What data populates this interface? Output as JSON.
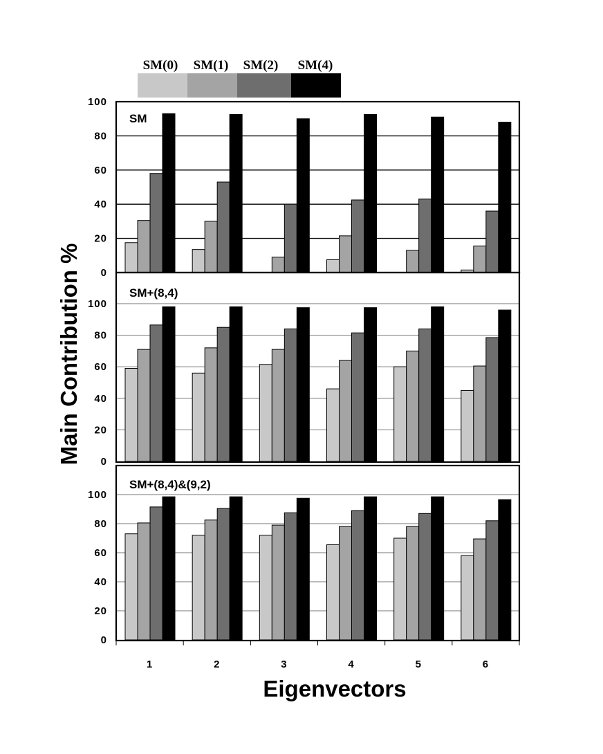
{
  "chart_data": {
    "type": "bar",
    "xlabel": "Eigenvectors",
    "ylabel": "Main Contribution %",
    "categories": [
      "1",
      "2",
      "3",
      "4",
      "5",
      "6"
    ],
    "ylim": [
      0,
      100
    ],
    "yticks": [
      "0",
      "20",
      "40",
      "60",
      "80",
      "100"
    ],
    "legend": {
      "position": "top",
      "entries": [
        {
          "name": "SM(0)",
          "color": "#c8c8c8"
        },
        {
          "name": "SM(1)",
          "color": "#a4a4a4"
        },
        {
          "name": "SM(2)",
          "color": "#6e6e6e"
        },
        {
          "name": "SM(4)",
          "color": "#000000"
        }
      ]
    },
    "panels": [
      {
        "label": "SM",
        "grid": true,
        "series": [
          {
            "name": "SM(0)",
            "values": [
              17.5,
              13.5,
              0,
              7.5,
              0,
              1.5
            ]
          },
          {
            "name": "SM(1)",
            "values": [
              30.5,
              30,
              9,
              21.5,
              13,
              15.5
            ]
          },
          {
            "name": "SM(2)",
            "values": [
              58,
              53,
              40,
              42.5,
              43,
              36
            ]
          },
          {
            "name": "SM(4)",
            "values": [
              93,
              92.5,
              90,
              92.5,
              91,
              88
            ]
          }
        ]
      },
      {
        "label": "SM+(8,4)",
        "grid": true,
        "series": [
          {
            "name": "SM(0)",
            "values": [
              59,
              56,
              61.5,
              46,
              60,
              45
            ]
          },
          {
            "name": "SM(1)",
            "values": [
              71,
              72,
              71,
              64,
              70,
              60.5
            ]
          },
          {
            "name": "SM(2)",
            "values": [
              86.5,
              85,
              84,
              81.5,
              84,
              78.5
            ]
          },
          {
            "name": "SM(4)",
            "values": [
              98,
              98,
              97.5,
              97.5,
              98,
              96
            ]
          }
        ]
      },
      {
        "label": "SM+(8,4)&(9,2)",
        "grid": true,
        "series": [
          {
            "name": "SM(0)",
            "values": [
              73,
              72,
              72,
              65.5,
              70,
              58
            ]
          },
          {
            "name": "SM(1)",
            "values": [
              80.5,
              82.5,
              79,
              78,
              78,
              69.5
            ]
          },
          {
            "name": "SM(2)",
            "values": [
              91.5,
              90.5,
              87.5,
              89,
              87,
              82
            ]
          },
          {
            "name": "SM(4)",
            "values": [
              98.5,
              98.5,
              97.5,
              98.5,
              98.5,
              96.5
            ]
          }
        ]
      }
    ]
  }
}
